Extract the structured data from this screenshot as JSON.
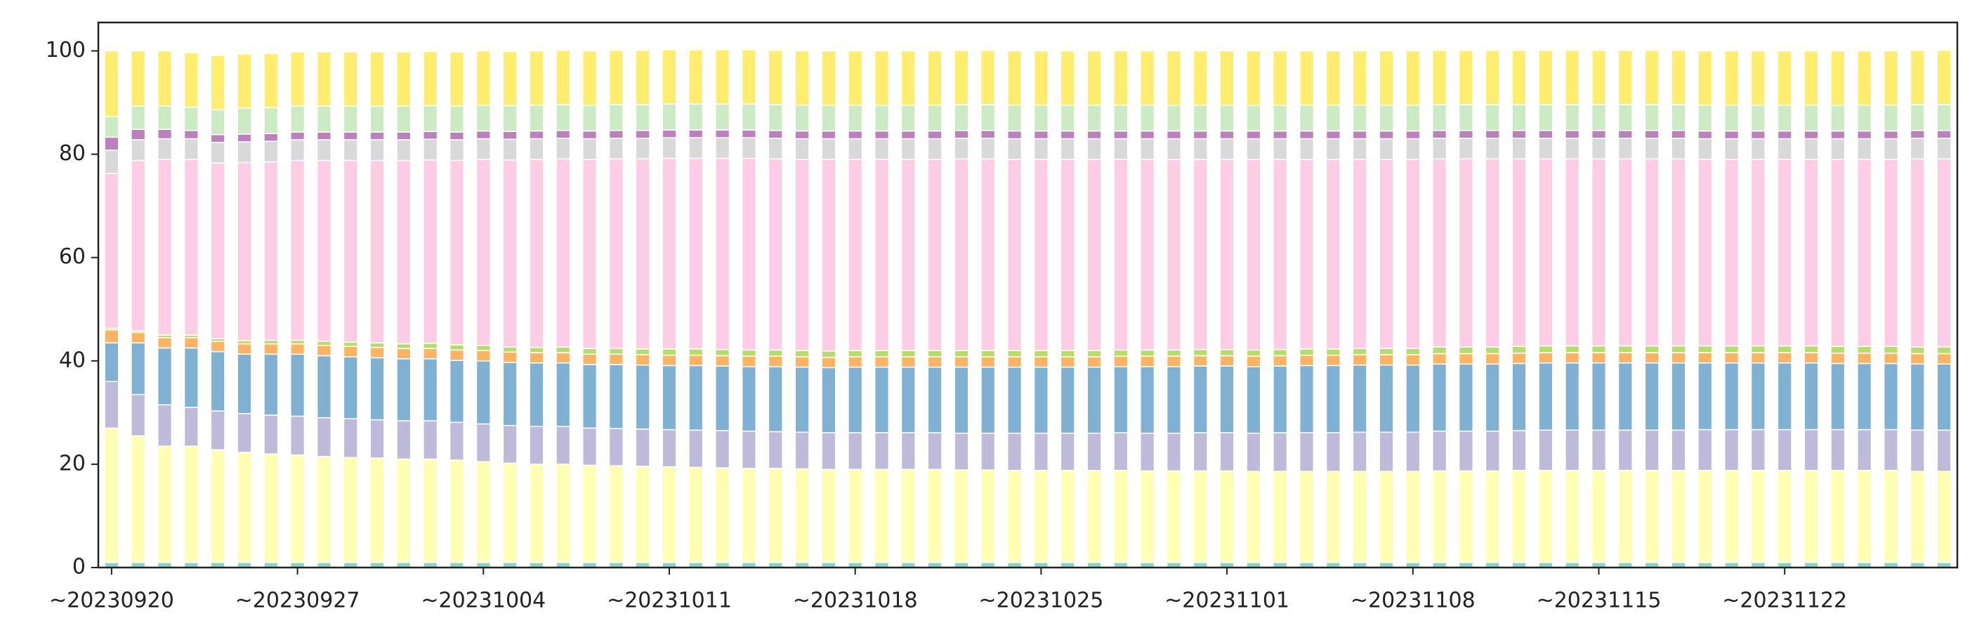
{
  "chart_data": {
    "type": "stacked-bar",
    "categories": [
      "~20230920",
      null,
      null,
      null,
      null,
      null,
      null,
      "~20230927",
      null,
      null,
      null,
      null,
      null,
      null,
      "~20231004",
      null,
      null,
      null,
      null,
      null,
      null,
      "~20231011",
      null,
      null,
      null,
      null,
      null,
      null,
      "~20231018",
      null,
      null,
      null,
      null,
      null,
      null,
      "~20231025",
      null,
      null,
      null,
      null,
      null,
      null,
      "~20231101",
      null,
      null,
      null,
      null,
      null,
      null,
      "~20231108",
      null,
      null,
      null,
      null,
      null,
      null,
      "~20231115",
      null,
      null,
      null,
      null,
      null,
      null,
      "~20231122",
      null,
      null,
      null,
      null,
      null,
      null
    ],
    "series": [
      {
        "color": "#8dd3c7",
        "values": [
          1,
          1,
          1,
          1,
          1,
          1,
          1,
          1,
          1,
          1,
          1,
          1,
          1,
          1,
          1,
          1,
          1,
          1,
          1,
          1,
          1,
          1,
          1,
          1,
          1,
          1,
          1,
          1,
          1,
          1,
          1,
          1,
          1,
          1,
          1,
          1,
          1,
          1,
          1,
          1,
          1,
          1,
          1,
          1,
          1,
          1,
          1,
          1,
          1,
          1,
          1,
          1,
          1,
          1,
          1,
          1,
          1,
          1,
          1,
          1,
          1,
          1,
          1,
          1,
          1,
          1,
          1,
          1,
          1,
          1
        ]
      },
      {
        "color": "#ffffb3",
        "values": [
          26,
          24.5,
          22.5,
          22.5,
          21.8,
          21.3,
          21,
          20.8,
          20.5,
          20.3,
          20.2,
          20,
          20,
          19.8,
          19.5,
          19.2,
          19,
          19,
          18.8,
          18.7,
          18.6,
          18.5,
          18.4,
          18.3,
          18.2,
          18.2,
          18.1,
          18,
          18,
          18,
          18,
          18,
          17.9,
          17.9,
          17.8,
          17.8,
          17.8,
          17.8,
          17.8,
          17.7,
          17.7,
          17.7,
          17.7,
          17.6,
          17.6,
          17.6,
          17.6,
          17.6,
          17.6,
          17.6,
          17.7,
          17.7,
          17.7,
          17.8,
          17.8,
          17.8,
          17.8,
          17.8,
          17.8,
          17.8,
          17.8,
          17.8,
          17.8,
          17.8,
          17.8,
          17.8,
          17.8,
          17.8,
          17.6,
          17.6
        ]
      },
      {
        "color": "#bebada",
        "values": [
          9,
          8,
          8,
          7.5,
          7.5,
          7.5,
          7.5,
          7.5,
          7.5,
          7.5,
          7.4,
          7.4,
          7.4,
          7.3,
          7.3,
          7.3,
          7.3,
          7.3,
          7.2,
          7.2,
          7.2,
          7.2,
          7.2,
          7.2,
          7.2,
          7.1,
          7.1,
          7.1,
          7.1,
          7.1,
          7.1,
          7.1,
          7.1,
          7.1,
          7.2,
          7.2,
          7.2,
          7.2,
          7.3,
          7.3,
          7.3,
          7.4,
          7.4,
          7.4,
          7.5,
          7.5,
          7.5,
          7.6,
          7.6,
          7.6,
          7.7,
          7.7,
          7.7,
          7.7,
          7.8,
          7.8,
          7.8,
          7.8,
          7.8,
          7.8,
          7.9,
          7.9,
          7.9,
          7.9,
          7.9,
          7.9,
          7.9,
          7.9,
          8,
          8
        ]
      },
      {
        "color": "#80b1d3",
        "values": [
          7.5,
          10,
          11,
          11.5,
          11.5,
          11.5,
          11.8,
          12,
          12,
          12,
          12,
          12,
          12,
          12,
          12.2,
          12.2,
          12.3,
          12.3,
          12.3,
          12.4,
          12.4,
          12.4,
          12.5,
          12.5,
          12.5,
          12.6,
          12.6,
          12.6,
          12.7,
          12.7,
          12.7,
          12.7,
          12.8,
          12.8,
          12.8,
          12.8,
          12.8,
          12.8,
          12.8,
          12.9,
          12.9,
          12.9,
          12.9,
          12.9,
          12.9,
          13,
          13,
          13,
          13,
          13,
          13,
          13,
          13,
          13,
          13,
          13,
          13,
          13,
          13,
          13,
          12.9,
          12.9,
          12.9,
          12.9,
          12.9,
          12.8,
          12.8,
          12.8,
          12.8,
          12.8
        ]
      },
      {
        "color": "#fdb462",
        "values": [
          2.5,
          2,
          2,
          2,
          2,
          2,
          2,
          2,
          2,
          2,
          2,
          2,
          2,
          2,
          2,
          2,
          2,
          2,
          2,
          2,
          2,
          2,
          2,
          2,
          2,
          2,
          2,
          2,
          2,
          2,
          2,
          2,
          2,
          2,
          2,
          2,
          2,
          2,
          2,
          2,
          2,
          2,
          2,
          2,
          2,
          2,
          2,
          2,
          2,
          2,
          2,
          2,
          2,
          2,
          2,
          2,
          2,
          2,
          2,
          2,
          2,
          2,
          2,
          2,
          2,
          2,
          2,
          2,
          2,
          2
        ]
      },
      {
        "color": "#b3de69",
        "values": [
          0.3,
          0.3,
          0.5,
          0.5,
          0.5,
          0.6,
          0.7,
          0.7,
          0.8,
          0.8,
          0.9,
          0.9,
          1,
          1,
          1,
          1,
          1,
          1.1,
          1.1,
          1.1,
          1.1,
          1.2,
          1.2,
          1.2,
          1.2,
          1.2,
          1.2,
          1.2,
          1.2,
          1.2,
          1.2,
          1.2,
          1.2,
          1.2,
          1.2,
          1.2,
          1.2,
          1.2,
          1.2,
          1.2,
          1.2,
          1.2,
          1.2,
          1.2,
          1.2,
          1.2,
          1.2,
          1.2,
          1.2,
          1.2,
          1.3,
          1.3,
          1.3,
          1.3,
          1.3,
          1.3,
          1.3,
          1.3,
          1.3,
          1.3,
          1.3,
          1.3,
          1.3,
          1.3,
          1.3,
          1.3,
          1.3,
          1.3,
          1.3,
          1.3
        ]
      },
      {
        "color": "#fccde5",
        "values": [
          30,
          33,
          34,
          34,
          34,
          34.5,
          34.5,
          34.8,
          35,
          35.2,
          35.3,
          35.5,
          35.5,
          35.7,
          36,
          36.2,
          36.4,
          36.4,
          36.6,
          36.7,
          36.8,
          36.9,
          36.9,
          37,
          37.1,
          37,
          37,
          37.1,
          37,
          37,
          37,
          37,
          37.1,
          37.1,
          37,
          37,
          37,
          37,
          36.9,
          36.9,
          36.9,
          36.8,
          36.8,
          36.9,
          36.8,
          36.7,
          36.7,
          36.6,
          36.6,
          36.6,
          36.4,
          36.4,
          36.4,
          36.3,
          36.2,
          36.2,
          36.2,
          36.2,
          36.2,
          36.2,
          36.1,
          36.1,
          36.1,
          36.1,
          36.1,
          36.2,
          36.2,
          36.2,
          36.4,
          36.4
        ]
      },
      {
        "color": "#d9d9d9",
        "values": [
          4.5,
          4,
          4,
          4,
          4,
          4,
          4,
          4,
          4,
          4,
          4,
          4,
          4,
          4,
          4,
          4,
          4,
          4,
          4,
          4,
          4,
          4,
          4,
          4,
          4,
          4,
          4,
          4,
          4,
          4,
          4,
          4,
          4,
          4,
          4,
          4,
          4,
          4,
          4,
          4,
          4,
          4,
          4,
          4,
          4,
          4,
          4,
          4,
          4,
          4,
          4,
          4,
          4,
          4,
          4,
          4,
          4,
          4,
          4,
          4,
          4,
          4,
          4,
          4,
          4,
          4,
          4,
          4,
          4,
          4
        ]
      },
      {
        "color": "#bc80bd",
        "values": [
          2.5,
          2,
          1.8,
          1.6,
          1.5,
          1.5,
          1.5,
          1.5,
          1.5,
          1.5,
          1.5,
          1.5,
          1.5,
          1.5,
          1.5,
          1.5,
          1.5,
          1.5,
          1.5,
          1.5,
          1.5,
          1.5,
          1.5,
          1.5,
          1.5,
          1.5,
          1.5,
          1.5,
          1.5,
          1.5,
          1.5,
          1.5,
          1.5,
          1.5,
          1.5,
          1.5,
          1.5,
          1.5,
          1.5,
          1.5,
          1.5,
          1.5,
          1.5,
          1.5,
          1.5,
          1.5,
          1.5,
          1.5,
          1.5,
          1.5,
          1.5,
          1.5,
          1.5,
          1.5,
          1.5,
          1.5,
          1.5,
          1.5,
          1.5,
          1.5,
          1.5,
          1.5,
          1.5,
          1.5,
          1.5,
          1.5,
          1.5,
          1.5,
          1.5,
          1.5
        ]
      },
      {
        "color": "#ccebc5",
        "values": [
          4,
          4.5,
          4.5,
          4.5,
          4.8,
          5,
          5,
          5,
          5,
          5,
          5,
          5,
          5,
          5,
          5,
          5,
          5,
          5,
          5,
          5,
          5,
          5,
          5,
          5,
          5,
          5,
          5,
          5,
          5,
          5,
          5,
          5,
          5,
          5,
          5,
          5,
          5,
          5,
          5,
          5,
          5,
          5,
          5,
          5,
          5,
          5,
          5,
          5,
          5,
          5,
          5,
          5,
          5,
          5,
          5,
          5,
          5,
          5,
          5,
          5,
          5,
          5,
          5,
          5,
          5,
          5,
          5,
          5,
          5,
          5
        ]
      },
      {
        "color": "#ffed6f",
        "values": [
          12.7,
          10.7,
          10.7,
          10.5,
          10.5,
          10.5,
          10.5,
          10.5,
          10.5,
          10.5,
          10.5,
          10.5,
          10.5,
          10.5,
          10.5,
          10.5,
          10.5,
          10.5,
          10.5,
          10.5,
          10.5,
          10.5,
          10.5,
          10.5,
          10.5,
          10.5,
          10.5,
          10.5,
          10.5,
          10.5,
          10.5,
          10.5,
          10.5,
          10.5,
          10.5,
          10.5,
          10.5,
          10.5,
          10.5,
          10.5,
          10.5,
          10.5,
          10.5,
          10.5,
          10.5,
          10.5,
          10.5,
          10.5,
          10.5,
          10.5,
          10.5,
          10.5,
          10.5,
          10.5,
          10.5,
          10.5,
          10.5,
          10.5,
          10.5,
          10.5,
          10.5,
          10.5,
          10.5,
          10.5,
          10.5,
          10.5,
          10.5,
          10.5,
          10.5,
          10.5
        ]
      }
    ],
    "ylim": [
      0,
      105.5
    ],
    "yticks": [
      0,
      20,
      40,
      60,
      80,
      100
    ],
    "grid": false
  }
}
